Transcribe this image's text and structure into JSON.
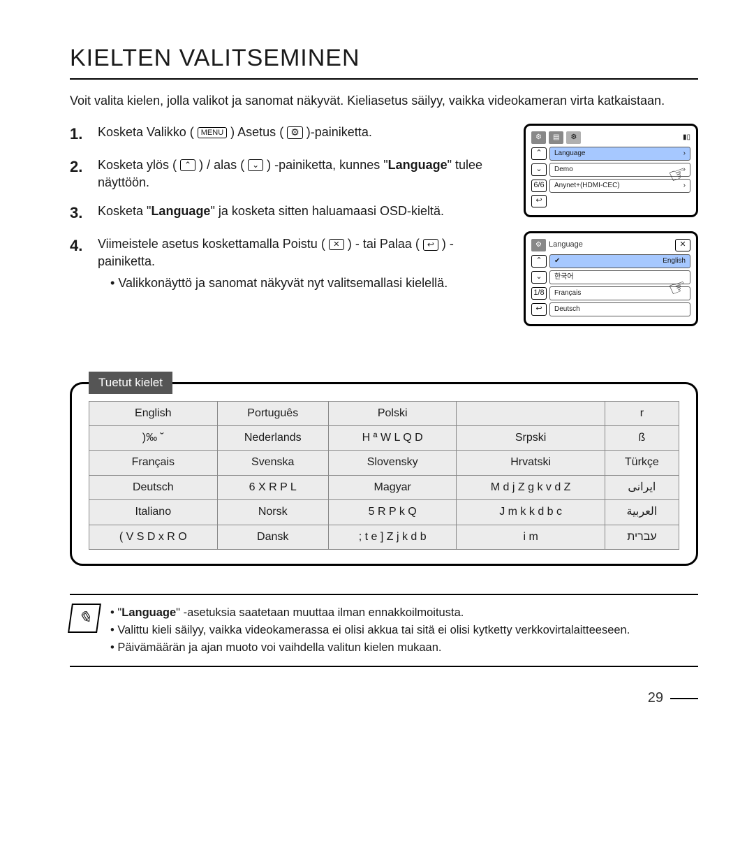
{
  "page": {
    "title": "KIELTEN VALITSEMINEN",
    "intro": "Voit valita kielen, jolla valikot ja sanomat näkyvät. Kieliasetus säilyy, vaikka videokameran virta katkaistaan.",
    "number": "29"
  },
  "steps": [
    {
      "num": "1.",
      "pre": "Kosketa Valikko (",
      "icon1": "MENU",
      "mid": ")     Asetus (",
      "icon2": "gear",
      "post": ")-painiketta."
    },
    {
      "num": "2.",
      "pre": "Kosketa ylös (",
      "icon1": "up",
      "mid": ") / alas (",
      "icon2": "down",
      "post": ") -painiketta, kunnes \"",
      "bold": "Language",
      "after": "\" tulee näyttöön."
    },
    {
      "num": "3.",
      "pre": "Kosketa \"",
      "bold": "Language",
      "post": "\" ja kosketa sitten haluamaasi OSD-kieltä."
    },
    {
      "num": "4.",
      "pre": "Viimeistele asetus koskettamalla Poistu (",
      "icon1": "x",
      "mid": ") - tai Palaa (",
      "icon2": "back",
      "post": ") -painiketta.",
      "sub": "Valikkonäyttö ja sanomat näkyvät nyt valitsemallasi kielellä."
    }
  ],
  "screens": {
    "s1": {
      "rows": [
        {
          "label": "Language",
          "hl": true
        },
        {
          "label": "Demo",
          "hl": false
        },
        {
          "label": "Anynet+(HDMI-CEC)",
          "hl": false
        }
      ],
      "page": "6/6"
    },
    "s2": {
      "title": "Language",
      "rows": [
        {
          "label": "English",
          "hl": true,
          "check": true
        },
        {
          "label": "한국어",
          "hl": false
        },
        {
          "label": "Français",
          "hl": false
        },
        {
          "label": "Deutsch",
          "hl": false
        }
      ],
      "page": "1/8"
    }
  },
  "lang_box": {
    "tab": "Tuetut kielet",
    "columns": 5,
    "rows": [
      [
        "English",
        "Português",
        "Polski",
        "",
        "r"
      ],
      [
        ")‰ ˘",
        "Nederlands",
        "H ª W L Q D",
        "Srpski",
        "ß"
      ],
      [
        "Français",
        "Svenska",
        "Slovensky",
        "Hrvatski",
        "Türkçe"
      ],
      [
        "Deutsch",
        "6 X R P L",
        "Magyar",
        "M d j Z   g k v d Z",
        "ایرانی"
      ],
      [
        "Italiano",
        "Norsk",
        "5 R P k Q",
        "J m k k d b c",
        "العربية"
      ],
      [
        "( V S D x R O",
        "Dansk",
        "; t e ] Z j k d b",
        "i m",
        "עברית"
      ]
    ],
    "border_color": "#000000",
    "cell_bg": "#ececec",
    "cell_border": "#888888"
  },
  "notes": [
    {
      "pre": "\"",
      "bold": "Language",
      "post": "\" -asetuksia saatetaan muuttaa ilman ennakkoilmoitusta."
    },
    {
      "text": "Valittu kieli säilyy, vaikka videokamerassa ei olisi akkua tai sitä ei olisi kytketty verkkovirtalaitteeseen."
    },
    {
      "text": "Päivämäärän ja ajan muoto voi vaihdella valitun kielen mukaan."
    }
  ]
}
